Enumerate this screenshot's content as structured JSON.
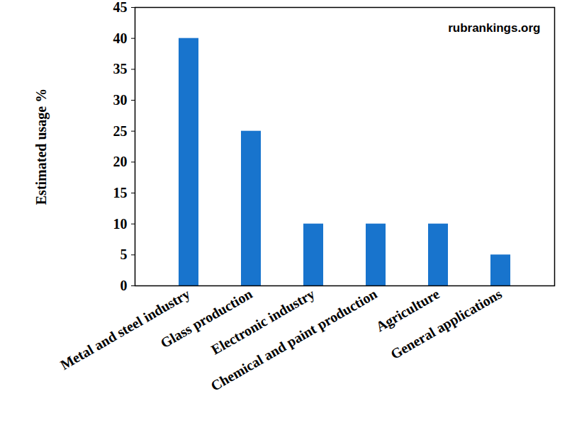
{
  "chart_data": {
    "type": "bar",
    "y_label": "Estimated usage %",
    "annotation": "rubrankings.org",
    "categories": [
      "Metal and steel industry",
      "Glass production",
      "Electronic industry",
      "Chemical and paint production",
      "Agriculture",
      "General applications"
    ],
    "values": [
      40,
      25,
      10,
      10,
      10,
      5
    ],
    "color": "#1874cd",
    "ylim": [
      0,
      45
    ],
    "yticks": [
      0,
      5,
      10,
      15,
      20,
      25,
      30,
      35,
      40,
      45
    ],
    "grid": false
  }
}
